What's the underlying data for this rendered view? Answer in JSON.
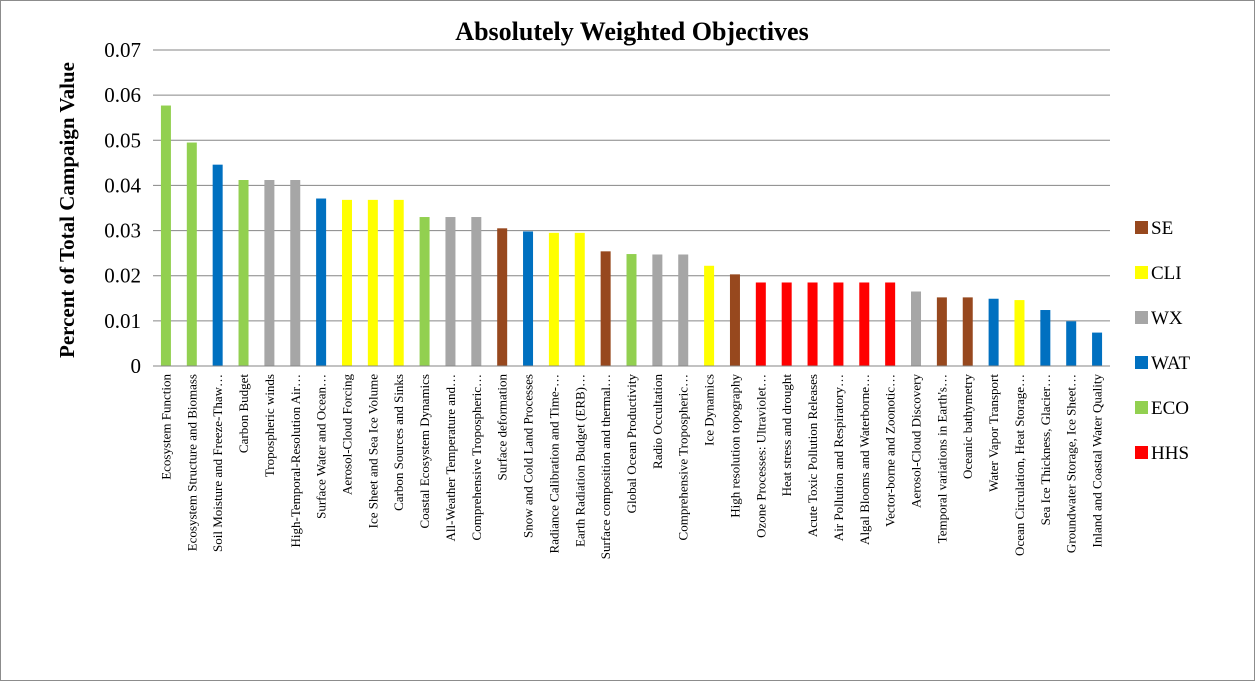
{
  "chart_data": {
    "type": "bar",
    "title": "Absolutely Weighted Objectives",
    "xlabel": "",
    "ylabel": "Percent of Total Campaign Value",
    "ylim": [
      0,
      0.07
    ],
    "yticks": [
      "0",
      "0.01",
      "0.02",
      "0.03",
      "0.04",
      "0.05",
      "0.06",
      "0.07"
    ],
    "grid": true,
    "legend_position": "right",
    "groups": [
      {
        "code": "SE",
        "color": "#97481e"
      },
      {
        "code": "CLI",
        "color": "#ffff00"
      },
      {
        "code": "WX",
        "color": "#a6a6a6"
      },
      {
        "code": "WAT",
        "color": "#0070c0"
      },
      {
        "code": "ECO",
        "color": "#92d050"
      },
      {
        "code": "HHS",
        "color": "#ff0000"
      }
    ],
    "categories": [
      "Ecosystem Function",
      "Ecosystem Structure and Biomass",
      "Soil Moisture and Freeze-Thaw…",
      "Carbon Budget",
      "Tropospheric winds",
      "High-Temporal-Resolution Air…",
      "Surface Water and Ocean…",
      "Aerosol-Cloud Forcing",
      "Ice Sheet and Sea Ice Volume",
      "Carbon Sources and Sinks",
      "Coastal Ecosystem Dynamics",
      "All-Weather Temperature and…",
      "Comprehensive Tropospheric…",
      "Surface deformation",
      "Snow and Cold Land Processes",
      "Radiance Calibration and Time-…",
      "Earth Radiation Budget (ERB)…",
      "Surface composition and thermal…",
      "Global Ocean Productivity",
      "Radio Occultation",
      "Comprehensive Tropospheric…",
      "Ice Dynamics",
      "High resolution topography",
      "Ozone Processes: Ultraviolet…",
      "Heat stress and drought",
      "Acute Toxic Pollution Releases",
      "Air Pollution and Respiratory…",
      "Algal Blooms and Waterborne…",
      "Vector-borne and Zoonotic…",
      "Aerosol-Cloud Discovery",
      "Temporal variations in Earth's…",
      "Oceanic bathymetry",
      "Water Vapor Transport",
      "Ocean Circulation, Heat Storage…",
      "Sea Ice Thickness, Glacier…",
      "Groundwater Storage, Ice Sheet…",
      "Inland and Coastal Water Quality"
    ],
    "values": [
      0.0577,
      0.0495,
      0.0446,
      0.0412,
      0.0412,
      0.0412,
      0.0371,
      0.0368,
      0.0368,
      0.0368,
      0.033,
      0.033,
      0.033,
      0.0305,
      0.0298,
      0.0295,
      0.0295,
      0.0254,
      0.0248,
      0.0247,
      0.0247,
      0.0222,
      0.0203,
      0.0185,
      0.0185,
      0.0185,
      0.0185,
      0.0185,
      0.0185,
      0.0165,
      0.0152,
      0.0152,
      0.0149,
      0.0146,
      0.0124,
      0.0099,
      0.0074
    ],
    "bar_groups": [
      "ECO",
      "ECO",
      "WAT",
      "ECO",
      "WX",
      "WX",
      "WAT",
      "CLI",
      "CLI",
      "CLI",
      "ECO",
      "WX",
      "WX",
      "SE",
      "WAT",
      "CLI",
      "CLI",
      "SE",
      "ECO",
      "WX",
      "WX",
      "CLI",
      "SE",
      "HHS",
      "HHS",
      "HHS",
      "HHS",
      "HHS",
      "HHS",
      "WX",
      "SE",
      "SE",
      "WAT",
      "CLI",
      "WAT",
      "WAT",
      "WAT"
    ]
  }
}
